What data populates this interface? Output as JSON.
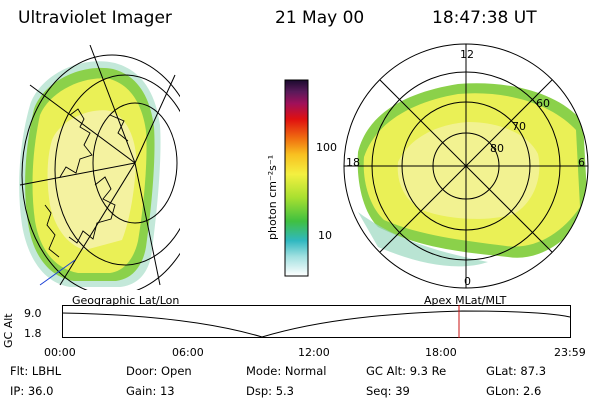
{
  "header": {
    "instrument": "Ultraviolet Imager",
    "date": "21 May 00",
    "time": "18:47:38 UT"
  },
  "colorbar": {
    "label": "photon cm⁻²s⁻¹",
    "ticks": [
      "100",
      "10"
    ]
  },
  "polar_plot": {
    "mlt_labels": {
      "top": "12",
      "left": "18",
      "right": "6",
      "bottom": "0"
    },
    "mlat_labels": [
      "60",
      "70",
      "80"
    ]
  },
  "left_map": {
    "label": "Geographic Lat/Lon"
  },
  "right_map": {
    "label": "Apex MLat/MLT"
  },
  "timeline": {
    "axis_title": "GC Alt",
    "y_ticks": [
      "9.0",
      "1.8"
    ],
    "x_ticks": [
      "00:00",
      "06:00",
      "12:00",
      "18:00",
      "23:59"
    ],
    "marker_time": "18:47"
  },
  "info": {
    "row1": [
      {
        "label": "Flt:",
        "value": "LBHL"
      },
      {
        "label": "Door:",
        "value": "Open"
      },
      {
        "label": "Mode:",
        "value": "Normal"
      },
      {
        "label": "GC Alt:",
        "value": "9.3 Re"
      },
      {
        "label": "GLat:",
        "value": "87.3"
      }
    ],
    "row2": [
      {
        "label": "IP:",
        "value": "36.0"
      },
      {
        "label": "Gain:",
        "value": "13"
      },
      {
        "label": "Dsp:",
        "value": "5.3"
      },
      {
        "label": "Seq:",
        "value": "39"
      },
      {
        "label": "GLon:",
        "value": "2.6"
      }
    ]
  }
}
